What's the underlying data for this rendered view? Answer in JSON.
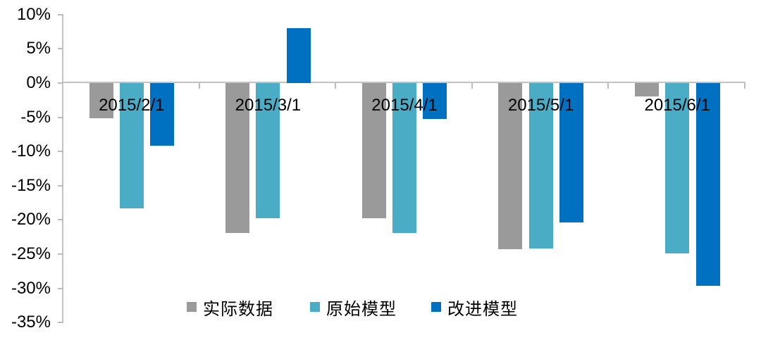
{
  "chart_data": {
    "type": "bar",
    "title": "",
    "xlabel": "",
    "ylabel": "",
    "categories": [
      "2015/2/1",
      "2015/3/1",
      "2015/4/1",
      "2015/5/1",
      "2015/6/1"
    ],
    "series": [
      {
        "name": "实际数据",
        "color": "#9A9A9A",
        "values": [
          -5.1,
          -21.9,
          -19.8,
          -24.3,
          -2.0
        ]
      },
      {
        "name": "原始模型",
        "color": "#4BACC6",
        "values": [
          -18.3,
          -19.8,
          -21.9,
          -24.2,
          -24.9
        ]
      },
      {
        "name": "改进模型",
        "color": "#0070C0",
        "values": [
          -9.2,
          8.0,
          -5.2,
          -20.4,
          -29.6
        ]
      }
    ],
    "ylim": [
      -35,
      10
    ],
    "ytick_step": 5,
    "ytick_labels": [
      "10%",
      "5%",
      "0%",
      "-5%",
      "-10%",
      "-15%",
      "-20%",
      "-25%",
      "-30%",
      "-35%"
    ],
    "grid": false,
    "legend_position": "bottom-center",
    "axis_color": "#C3C3C3",
    "text_color": "#000000",
    "background_color": "#FFFFFF"
  }
}
